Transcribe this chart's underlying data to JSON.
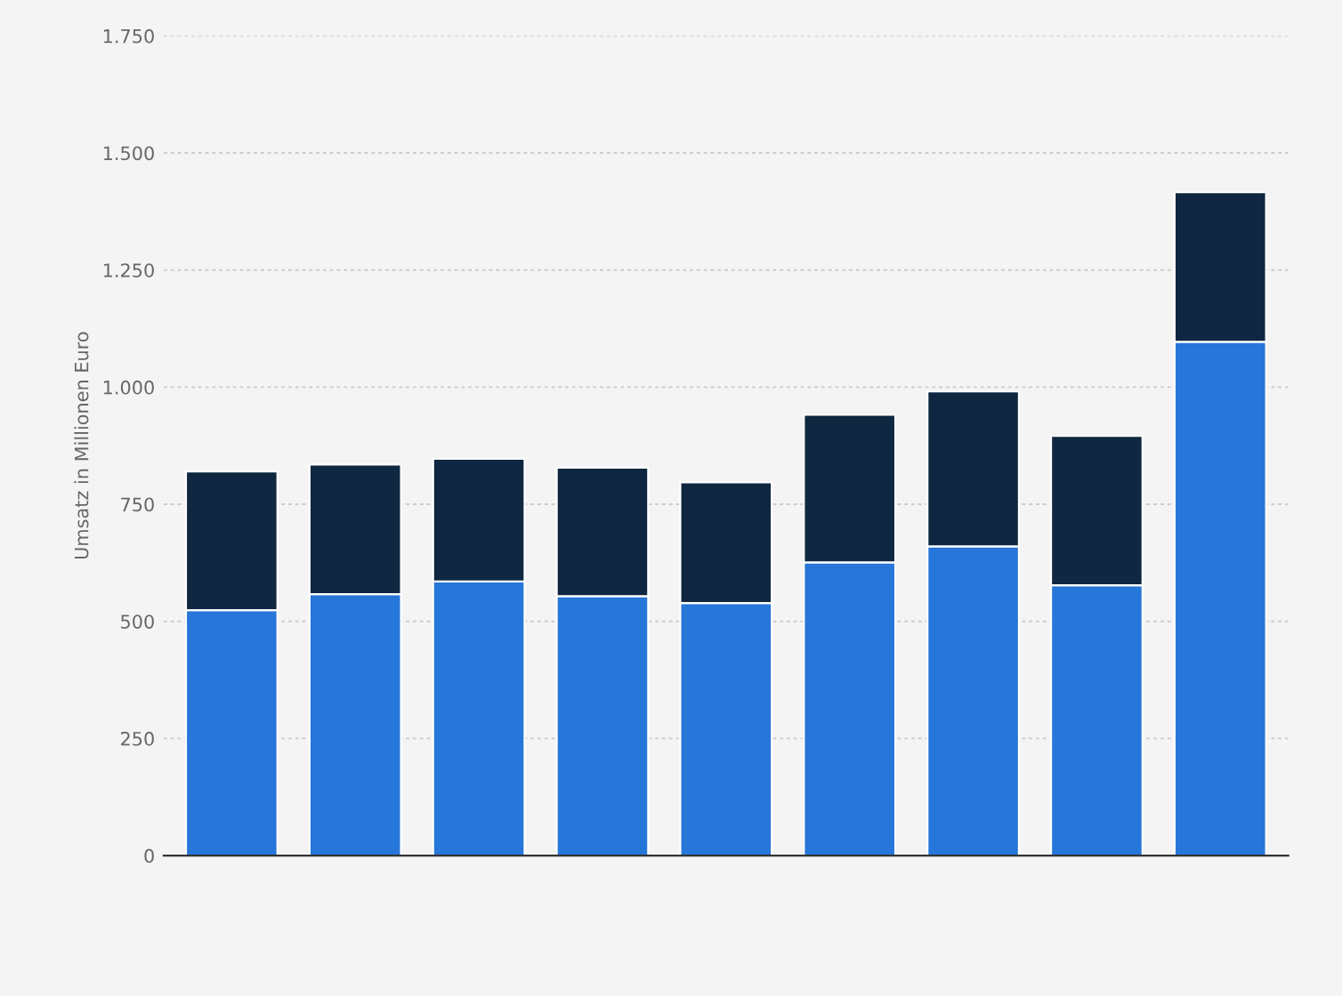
{
  "chart_data": {
    "type": "bar",
    "stacked": true,
    "ylabel": "Umsatz in Millionen Euro",
    "categories": [
      null,
      null,
      null,
      null,
      null,
      null,
      null,
      null,
      null
    ],
    "series": [
      {
        "color": "#2776d9",
        "values": [
          524,
          558,
          585,
          554,
          539,
          626,
          660,
          577,
          1097
        ]
      },
      {
        "color": "#0f2740",
        "values": [
          296,
          277,
          262,
          274,
          258,
          315,
          331,
          319,
          319
        ]
      }
    ],
    "ylim": [
      0,
      1750
    ],
    "yticks": [
      0,
      250,
      500,
      750,
      {
        "value": 1000,
        "label": "1.000"
      },
      {
        "value": 1250,
        "label": "1.250"
      },
      {
        "value": 1500,
        "label": "1.500"
      },
      {
        "value": 1750,
        "label": "1.750"
      }
    ],
    "grid": "y",
    "legend": false
  }
}
